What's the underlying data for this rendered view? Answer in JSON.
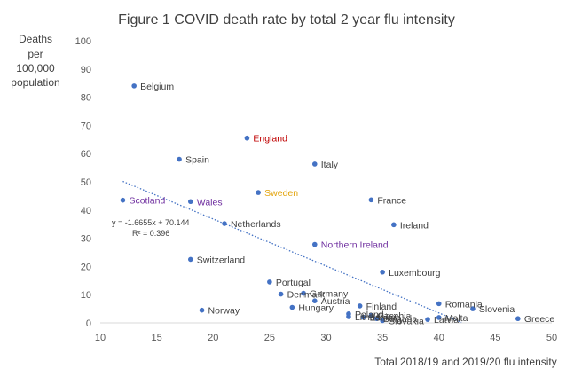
{
  "chart_data": {
    "type": "scatter",
    "title": "Figure 1 COVID death rate by total 2 year flu intensity",
    "ylabel_lines": [
      "Deaths",
      "per",
      "100,000",
      "population"
    ],
    "xlabel": "Total 2018/19 and 2019/20 flu intensity",
    "xlim": [
      10,
      50
    ],
    "ylim": [
      0,
      100
    ],
    "x_ticks": [
      10,
      15,
      20,
      25,
      30,
      35,
      40,
      45,
      50
    ],
    "y_ticks": [
      0,
      10,
      20,
      30,
      40,
      50,
      60,
      70,
      80,
      90,
      100
    ],
    "grid": false,
    "points": [
      {
        "label": "Belgium",
        "x": 13,
        "y": 84,
        "color": "#404040"
      },
      {
        "label": "England",
        "x": 23,
        "y": 65.5,
        "color": "#c00000"
      },
      {
        "label": "Spain",
        "x": 17,
        "y": 58,
        "color": "#404040"
      },
      {
        "label": "Italy",
        "x": 29,
        "y": 56.3,
        "color": "#404040"
      },
      {
        "label": "Sweden",
        "x": 24,
        "y": 46.2,
        "color": "#e3a50f"
      },
      {
        "label": "Scotland",
        "x": 12,
        "y": 43.5,
        "color": "#7030a0"
      },
      {
        "label": "Wales",
        "x": 18,
        "y": 43,
        "color": "#7030a0"
      },
      {
        "label": "France",
        "x": 34,
        "y": 43.6,
        "color": "#404040"
      },
      {
        "label": "Netherlands",
        "x": 21,
        "y": 35.2,
        "color": "#404040"
      },
      {
        "label": "Ireland",
        "x": 36,
        "y": 34.8,
        "color": "#404040"
      },
      {
        "label": "Northern Ireland",
        "x": 29,
        "y": 27.8,
        "color": "#7030a0"
      },
      {
        "label": "Switzerland",
        "x": 18,
        "y": 22.5,
        "color": "#404040"
      },
      {
        "label": "Luxembourg",
        "x": 35,
        "y": 18,
        "color": "#404040"
      },
      {
        "label": "Portugal",
        "x": 25,
        "y": 14.5,
        "color": "#404040"
      },
      {
        "label": "Denmark",
        "x": 26,
        "y": 10.2,
        "color": "#404040"
      },
      {
        "label": "Germany",
        "x": 28,
        "y": 10.5,
        "color": "#404040"
      },
      {
        "label": "Austria",
        "x": 29,
        "y": 7.8,
        "color": "#404040"
      },
      {
        "label": "Finland",
        "x": 33,
        "y": 6,
        "color": "#404040"
      },
      {
        "label": "Romania",
        "x": 40,
        "y": 6.8,
        "color": "#404040"
      },
      {
        "label": "Slovenia",
        "x": 43,
        "y": 5,
        "color": "#404040"
      },
      {
        "label": "Norway",
        "x": 19,
        "y": 4.5,
        "color": "#404040"
      },
      {
        "label": "Hungary",
        "x": 27,
        "y": 5.5,
        "color": "#404040"
      },
      {
        "label": "Poland",
        "x": 32,
        "y": 3.2,
        "color": "#404040"
      },
      {
        "label": "Czechia",
        "x": 34,
        "y": 2.6,
        "color": "#404040"
      },
      {
        "label": "Malta",
        "x": 40,
        "y": 1.9,
        "color": "#404040"
      },
      {
        "label": "Lithuania",
        "x": 32,
        "y": 2.2,
        "color": "#404040"
      },
      {
        "label": "Estonia",
        "x": 33.3,
        "y": 2,
        "color": "#404040"
      },
      {
        "label": "Bulgaria",
        "x": 34.5,
        "y": 1.5,
        "color": "#404040"
      },
      {
        "label": "Slovakia",
        "x": 35,
        "y": 0.8,
        "color": "#404040"
      },
      {
        "label": "Latvia",
        "x": 39,
        "y": 1.2,
        "color": "#404040"
      },
      {
        "label": "Greece",
        "x": 47,
        "y": 1.5,
        "color": "#404040"
      }
    ],
    "trendline": {
      "type": "linear",
      "slope": -1.6655,
      "intercept": 70.144,
      "x_range": [
        12,
        42
      ],
      "equation_text": "y = -1.6655x + 70.144",
      "r2_text": "R² = 0.396"
    }
  }
}
